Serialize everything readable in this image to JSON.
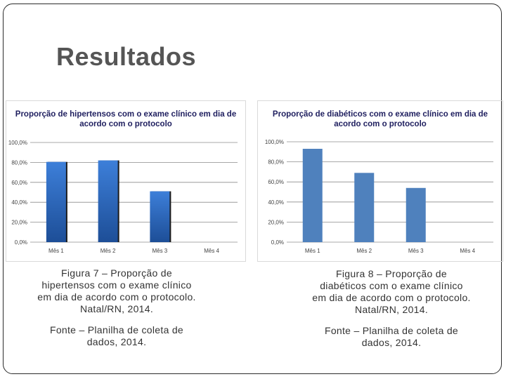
{
  "slide": {
    "title": "Resultados"
  },
  "chart_data": [
    {
      "type": "bar",
      "title_lines": [
        "Proporção de hipertensos com o exame clínico em dia de",
        "acordo com o protocolo"
      ],
      "categories": [
        "Mês 1",
        "Mês 2",
        "Mês 3",
        "Mês 4"
      ],
      "values": [
        80.5,
        82.0,
        51.0,
        0
      ],
      "y_ticks": [
        "0,0%",
        "20,0%",
        "40,0%",
        "60,0%",
        "80,0%",
        "100,0%"
      ],
      "ylim": [
        0,
        100
      ],
      "grid": true,
      "color": "#2e6cc4",
      "style": "gradient"
    },
    {
      "type": "bar",
      "title_lines": [
        "Proporção de diabéticos com o exame clínico em dia de",
        "acordo com o protocolo"
      ],
      "categories": [
        "Mês 1",
        "Mês 2",
        "Mês 3",
        "Mês 4"
      ],
      "values": [
        93.0,
        69.0,
        54.0,
        0
      ],
      "y_ticks": [
        "0,0%",
        "20,0%",
        "40,0%",
        "60,0%",
        "80,0%",
        "100,0%"
      ],
      "ylim": [
        0,
        100
      ],
      "grid": true,
      "color": "#4f81bd",
      "style": "flat"
    }
  ],
  "captions": {
    "figure7": "Figura 7 – Proporção de hipertensos com o exame clínico em dia de acordo com o protocolo. Natal/RN, 2014.",
    "source7": "Fonte – Planilha de coleta de dados, 2014.",
    "figure8": "Figura 8 – Proporção de diabéticos com o exame clínico em dia de acordo com o protocolo. Natal/RN, 2014.",
    "source8": "Fonte – Planilha de coleta de dados, 2014."
  }
}
